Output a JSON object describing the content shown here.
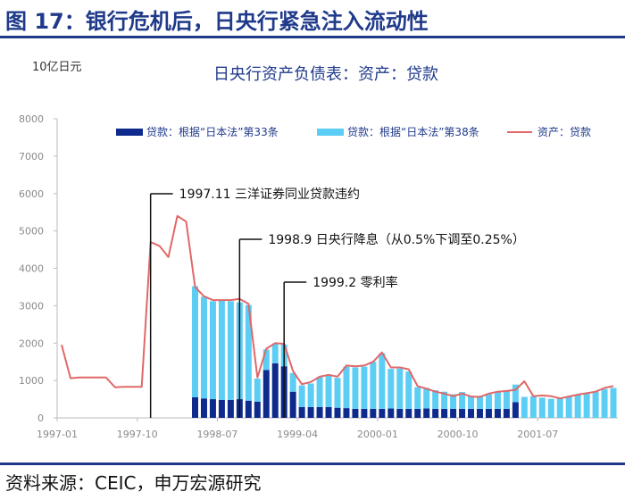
{
  "figure_title": "图 17：银行危机后，日央行紧急注入流动性",
  "source_text": "资料来源：CEIC，申万宏源研究",
  "colors": {
    "title": "#1f3a8a",
    "bar_law33": "#0d2a8c",
    "bar_law38": "#5ccdf4",
    "line_total": "#e06868",
    "axis": "#bbbbbb"
  },
  "chart_data": {
    "type": "bar",
    "title": "日央行资产负债表：资产：贷款",
    "unit_label": "10亿日元",
    "ylim": [
      0,
      8000
    ],
    "y_ticks": [
      "0",
      "1000",
      "2000",
      "3000",
      "4000",
      "5000",
      "6000",
      "7000",
      "8000"
    ],
    "x_ticks": [
      {
        "label": "1997-01",
        "index": 0
      },
      {
        "label": "1997-10",
        "index": 9
      },
      {
        "label": "1998-07",
        "index": 18
      },
      {
        "label": "1999-04",
        "index": 27
      },
      {
        "label": "2000-01",
        "index": 36
      },
      {
        "label": "2000-10",
        "index": 45
      },
      {
        "label": "2001-07",
        "index": 54
      }
    ],
    "legend": [
      "贷款：根据“日本法”第33条",
      "贷款：根据“日本法”第38条",
      "资产：贷款"
    ],
    "series": [
      {
        "name": "贷款：根据“日本法”第33条",
        "kind": "bar",
        "values": [
          0,
          0,
          0,
          0,
          0,
          0,
          0,
          0,
          0,
          0,
          0,
          0,
          0,
          0,
          0,
          550,
          520,
          500,
          480,
          480,
          500,
          460,
          430,
          1280,
          1460,
          1380,
          700,
          290,
          290,
          290,
          290,
          270,
          260,
          240,
          240,
          240,
          240,
          250,
          240,
          240,
          240,
          250,
          240,
          240,
          240,
          240,
          240,
          240,
          240,
          240,
          240,
          420,
          0,
          0,
          0,
          0,
          0,
          0,
          0,
          0,
          0,
          0,
          0
        ]
      },
      {
        "name": "贷款：根据“日本法”第38条",
        "kind": "bar",
        "values": [
          0,
          0,
          0,
          0,
          0,
          0,
          0,
          0,
          0,
          0,
          0,
          0,
          0,
          0,
          0,
          2970,
          2720,
          2620,
          2650,
          2640,
          2590,
          2560,
          620,
          550,
          530,
          580,
          500,
          580,
          630,
          800,
          840,
          800,
          1110,
          1110,
          1130,
          1260,
          1490,
          1060,
          1080,
          1000,
          580,
          550,
          500,
          460,
          390,
          450,
          350,
          350,
          400,
          450,
          480,
          470,
          560,
          580,
          540,
          510,
          540,
          570,
          620,
          660,
          700,
          770,
          800
        ]
      },
      {
        "name": "资产：贷款",
        "kind": "line",
        "values": [
          1950,
          1060,
          1080,
          1080,
          1080,
          1080,
          820,
          830,
          830,
          830,
          4700,
          4600,
          4300,
          5400,
          5250,
          3500,
          3250,
          3150,
          3150,
          3150,
          3180,
          3050,
          1080,
          1850,
          2000,
          1980,
          1250,
          900,
          960,
          1100,
          1150,
          1100,
          1400,
          1380,
          1400,
          1500,
          1750,
          1350,
          1350,
          1300,
          850,
          780,
          700,
          650,
          580,
          650,
          570,
          560,
          650,
          700,
          720,
          750,
          980,
          580,
          600,
          580,
          520,
          570,
          620,
          660,
          700,
          800,
          850
        ]
      }
    ],
    "annotations": [
      {
        "text": "1997.11 三洋证券同业贷款违约",
        "index": 10
      },
      {
        "text": "1998.9 日央行降息（从0.5%下调至0.25%）",
        "index": 20
      },
      {
        "text": "1999.2 零利率",
        "index": 25
      }
    ]
  }
}
